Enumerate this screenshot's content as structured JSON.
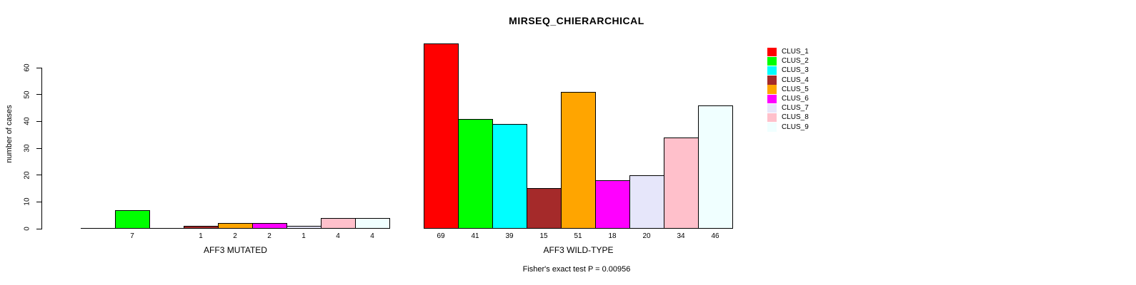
{
  "chart_data": {
    "type": "bar",
    "title": "MIRSEQ_CHIERARCHICAL",
    "ylabel": "number of cases",
    "xlabel": "",
    "ylim": [
      0,
      60
    ],
    "yticks": [
      0,
      10,
      20,
      30,
      40,
      50,
      60
    ],
    "grid": false,
    "legend_position": "topright",
    "legend": [
      {
        "label": "CLUS_1",
        "color": "#FF0000"
      },
      {
        "label": "CLUS_2",
        "color": "#00FF00"
      },
      {
        "label": "CLUS_3",
        "color": "#00FFFF"
      },
      {
        "label": "CLUS_4",
        "color": "#A52A2A"
      },
      {
        "label": "CLUS_5",
        "color": "#FFA500"
      },
      {
        "label": "CLUS_6",
        "color": "#FF00FF"
      },
      {
        "label": "CLUS_7",
        "color": "#E6E6FA"
      },
      {
        "label": "CLUS_8",
        "color": "#FFC0CB"
      },
      {
        "label": "CLUS_9",
        "color": "#F0FFFF"
      }
    ],
    "groups": [
      {
        "label": "AFF3 MUTATED",
        "values": [
          0,
          7,
          0,
          1,
          2,
          2,
          1,
          4,
          4
        ],
        "bar_labels": [
          "",
          "7",
          "",
          "1",
          "2",
          "2",
          "1",
          "4",
          "4"
        ]
      },
      {
        "label": "AFF3 WILD-TYPE",
        "values": [
          69,
          41,
          39,
          15,
          51,
          18,
          20,
          34,
          46
        ],
        "bar_labels": [
          "69",
          "41",
          "39",
          "15",
          "51",
          "18",
          "20",
          "34",
          "46"
        ]
      }
    ],
    "annotation": "Fisher's exact test P = 0.00956"
  }
}
